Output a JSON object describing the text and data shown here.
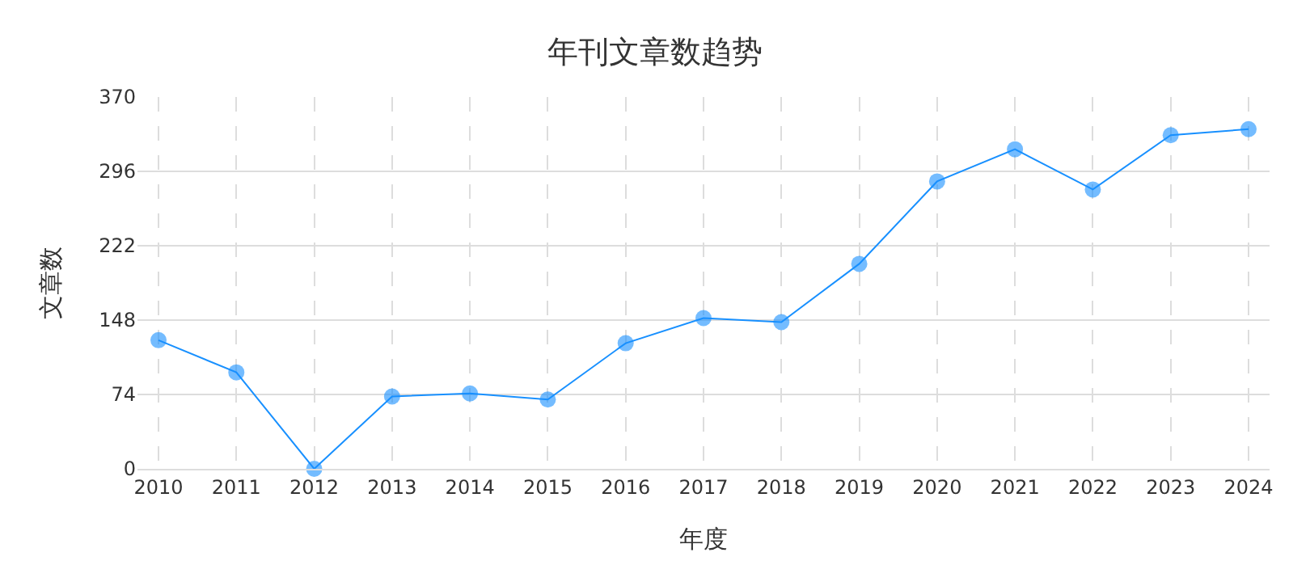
{
  "chart_data": {
    "type": "line",
    "title": "年刊文章数趋势",
    "xlabel": "年度",
    "ylabel": "文章数",
    "categories": [
      "2010",
      "2011",
      "2012",
      "2013",
      "2014",
      "2015",
      "2016",
      "2017",
      "2018",
      "2019",
      "2020",
      "2021",
      "2022",
      "2023",
      "2024"
    ],
    "series": [
      {
        "color": "#1890ff",
        "values": [
          128,
          96,
          0,
          72,
          75,
          69,
          125,
          150,
          146,
          204,
          286,
          318,
          278,
          332,
          338
        ]
      }
    ],
    "ylim": [
      0,
      370
    ],
    "yticks": [
      0,
      74,
      148,
      222,
      296,
      370
    ],
    "grid": true,
    "marker": "circle",
    "line_style": "solid"
  }
}
